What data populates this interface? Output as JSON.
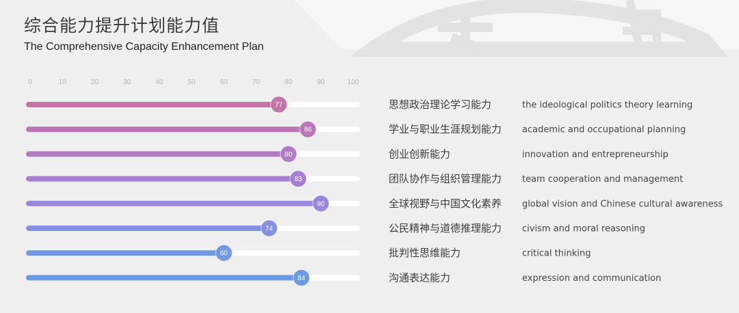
{
  "header": {
    "title": "综合能力提升计划能力值",
    "subtitle": "The Comprehensive Capacity Enhancement Plan"
  },
  "colors": {
    "background": "#efefef",
    "track": "#ffffff",
    "gradient": [
      "#c778a6",
      "#b777c9",
      "#a784dd",
      "#8b8ee0",
      "#6f95dd",
      "#5a98de"
    ]
  },
  "chart_data": {
    "type": "bar",
    "orientation": "horizontal",
    "title": "综合能力提升计划能力值",
    "subtitle": "The Comprehensive Capacity Enhancement Plan",
    "xlim": [
      0,
      100
    ],
    "ticks": [
      0,
      10,
      20,
      30,
      40,
      50,
      60,
      70,
      80,
      90,
      100
    ],
    "grid": false,
    "categories_cn": [
      "思想政治理论学习能力",
      "学业与职业生涯规划能力",
      "创业创新能力",
      "团队协作与组织管理能力",
      "全球视野与中国文化素养",
      "公民精神与道德推理能力",
      "批判性思维能力",
      "沟通表达能力"
    ],
    "categories_en": [
      "the ideological politics theory learning",
      "academic and occupational planning",
      "innovation and entrepreneurship",
      "team cooperation and management",
      "global vision and Chinese cultural awareness",
      "civism and moral reasoning",
      "critical thinking",
      "expression and communication"
    ],
    "values": [
      77,
      86,
      80,
      83,
      90,
      74,
      60,
      84
    ],
    "bar_colors": [
      "#c375a5",
      "#bb76b8",
      "#b37ac6",
      "#a67fd5",
      "#9a86dd",
      "#8590e0",
      "#7298df",
      "#6a9be0"
    ]
  }
}
